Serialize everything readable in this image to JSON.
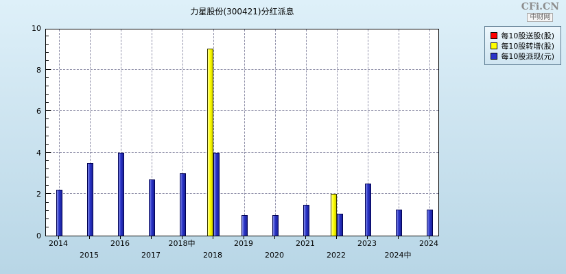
{
  "page": {
    "background_top": "#def0f9",
    "background_bottom": "#b8d6e6"
  },
  "logo": {
    "brand": "CFi.CN",
    "sub": "中财网"
  },
  "chart_data": {
    "type": "bar",
    "title": "力星股份(300421)分红派息",
    "categories": [
      "2014",
      "2015",
      "2016",
      "2017",
      "2018中",
      "2018",
      "2019",
      "2020",
      "2021",
      "2022",
      "2023",
      "2024中",
      "2024"
    ],
    "series": [
      {
        "name": "每10股送股(股)",
        "color": "#ff0000",
        "values": [
          0,
          0,
          0,
          0,
          0,
          0,
          0,
          0,
          0,
          0,
          0,
          0,
          0
        ]
      },
      {
        "name": "每10股转增(股)",
        "color": "#ffff00",
        "values": [
          0,
          0,
          0,
          0,
          0,
          9,
          0,
          0,
          0,
          2,
          0,
          0,
          0
        ]
      },
      {
        "name": "每10股派现(元)",
        "color": "#2a34c8",
        "values": [
          2.2,
          3.5,
          4,
          2.7,
          3,
          4,
          1,
          1,
          1.5,
          1.05,
          2.5,
          1.25,
          1.25
        ]
      }
    ],
    "ylim": [
      0,
      10
    ],
    "yticks": [
      0,
      2,
      4,
      6,
      8,
      10
    ],
    "grid": "dashed",
    "legend_position": "top-right",
    "plot_background": "#ffffff"
  }
}
